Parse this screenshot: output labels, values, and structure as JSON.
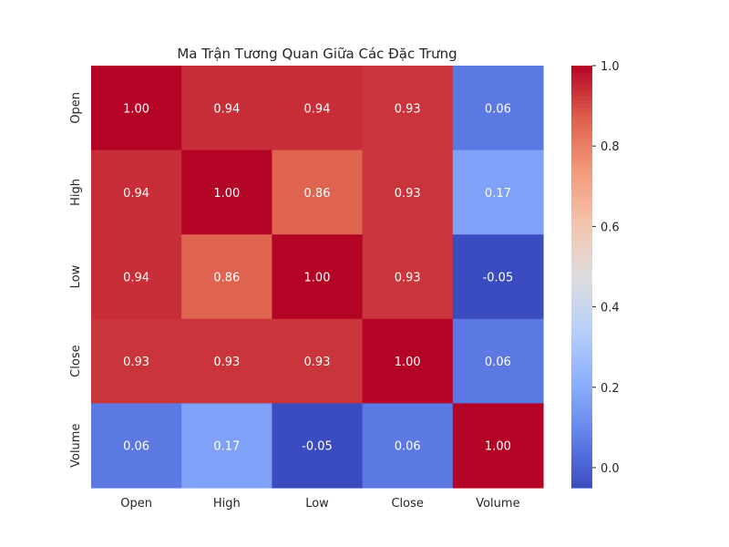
{
  "chart_data": {
    "type": "heatmap",
    "title": "Ma Trận Tương Quan Giữa Các Đặc Trưng",
    "xlabel": "",
    "ylabel": "",
    "x_categories": [
      "Open",
      "High",
      "Low",
      "Close",
      "Volume"
    ],
    "y_categories": [
      "Open",
      "High",
      "Low",
      "Close",
      "Volume"
    ],
    "values": [
      [
        1.0,
        0.94,
        0.94,
        0.93,
        0.06
      ],
      [
        0.94,
        1.0,
        0.86,
        0.93,
        0.17
      ],
      [
        0.94,
        0.86,
        1.0,
        0.93,
        -0.05
      ],
      [
        0.93,
        0.93,
        0.93,
        1.0,
        0.06
      ],
      [
        0.06,
        0.17,
        -0.05,
        0.06,
        1.0
      ]
    ],
    "annotations": [
      [
        "1.00",
        "0.94",
        "0.94",
        "0.93",
        "0.06"
      ],
      [
        "0.94",
        "1.00",
        "0.86",
        "0.93",
        "0.17"
      ],
      [
        "0.94",
        "0.86",
        "1.00",
        "0.93",
        "-0.05"
      ],
      [
        "0.93",
        "0.93",
        "0.93",
        "1.00",
        "0.06"
      ],
      [
        "0.06",
        "0.17",
        "-0.05",
        "0.06",
        "1.00"
      ]
    ],
    "colormap": "coolwarm",
    "color_range": [
      -0.05,
      1.0
    ],
    "colorbar_ticks": [
      "0.0",
      "0.2",
      "0.4",
      "0.6",
      "0.8",
      "1.0"
    ],
    "colorbar_tick_values": [
      0.0,
      0.2,
      0.4,
      0.6,
      0.8,
      1.0
    ],
    "grid": false,
    "legend": "colorbar-right"
  }
}
